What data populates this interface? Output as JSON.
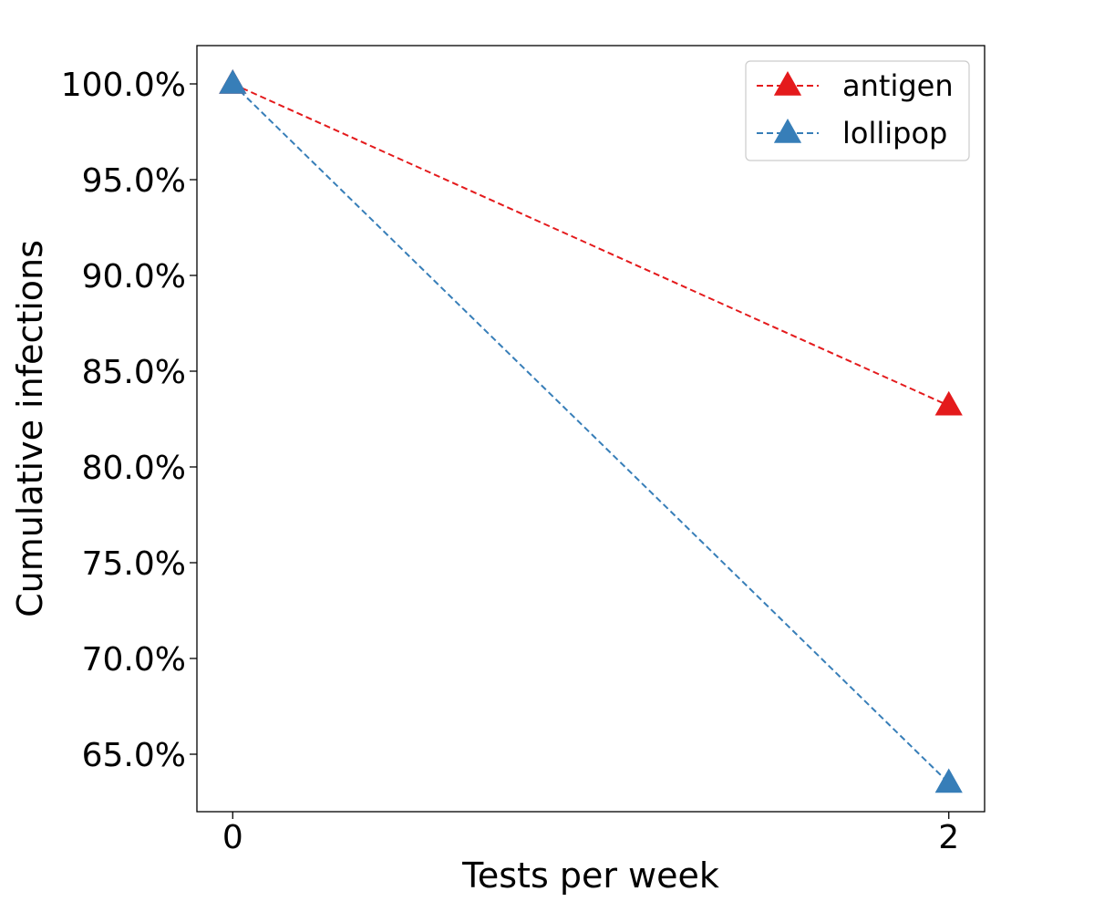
{
  "chart_data": {
    "type": "line",
    "title": "",
    "xlabel": "Tests per week",
    "ylabel": "Cumulative infections",
    "x": [
      0,
      2
    ],
    "x_ticks": [
      0,
      2
    ],
    "x_tick_labels": [
      "0",
      "2"
    ],
    "xlim": [
      -0.1,
      2.1
    ],
    "ylim": [
      0.62,
      1.02
    ],
    "y_ticks": [
      0.65,
      0.7,
      0.75,
      0.8,
      0.85,
      0.9,
      0.95,
      1.0
    ],
    "y_tick_labels": [
      "65.0%",
      "70.0%",
      "75.0%",
      "80.0%",
      "85.0%",
      "90.0%",
      "95.0%",
      "100.0%"
    ],
    "grid": false,
    "legend_position": "top-right",
    "series": [
      {
        "name": "antigen",
        "color": "#e41a1c",
        "line_style": "dashed",
        "marker": "triangle",
        "values": [
          1.0,
          0.832
        ]
      },
      {
        "name": "lollipop",
        "color": "#377eb8",
        "line_style": "dashed",
        "marker": "triangle",
        "values": [
          1.0,
          0.635
        ]
      }
    ]
  }
}
